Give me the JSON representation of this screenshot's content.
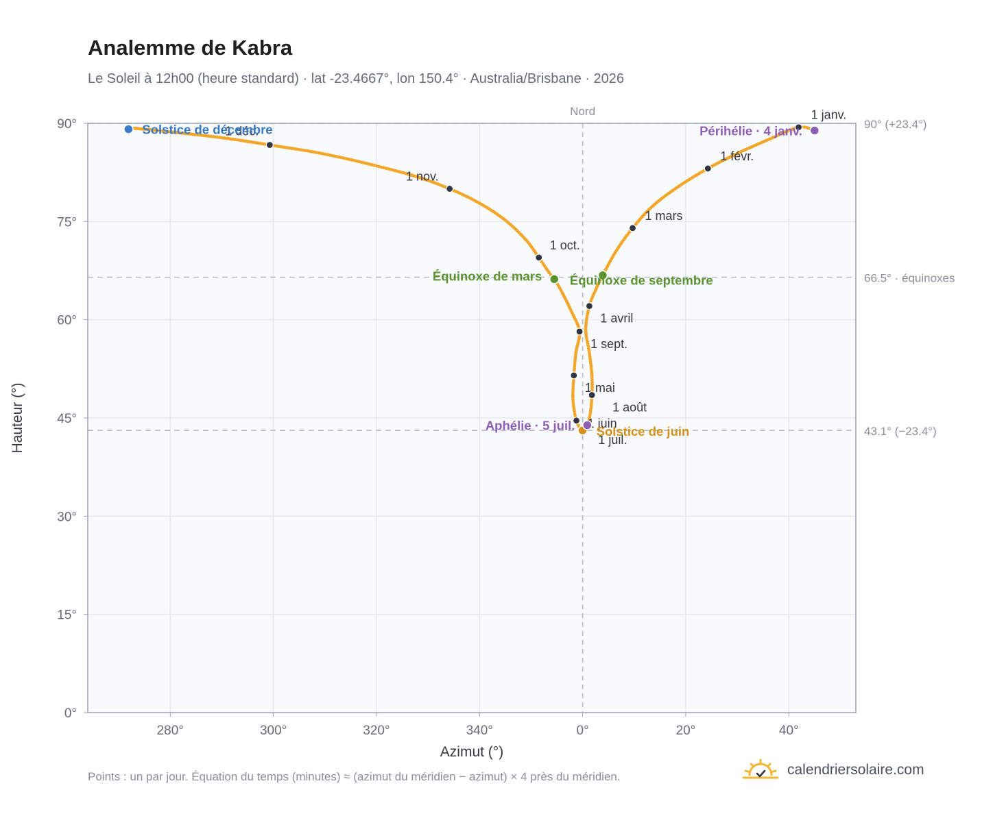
{
  "title": "Analemme de Kabra",
  "subtitle": "Le Soleil à 12h00 (heure standard) · lat -23.4667°, lon 150.4° · Australia/Brisbane · 2026",
  "footnote": "Points : un par jour. Équation du temps (minutes) ≈ (azimut du méridien − azimut) × 4 près du méridien.",
  "brand": {
    "text": "calendriersolaire.com",
    "icon": "sun-check-icon",
    "color": "#f2b632"
  },
  "colors": {
    "analemma": "#f2a62a",
    "month_marker": "#2f3440",
    "december": "#3a7bc8",
    "june": "#d4921a",
    "equinox": "#5b9331",
    "apsides": "#8e5fb5",
    "grid": "#e5e9ef",
    "reference": "#b3bcc8",
    "axis_text": "#666b78"
  },
  "chart_data": {
    "type": "scatter",
    "title": "Analemme de Kabra",
    "xlabel": "Azimut (°)",
    "ylabel": "Hauteur (°)",
    "ylim": [
      0,
      90
    ],
    "xlim": [
      -96,
      53
    ],
    "x_tick_labels": [
      "280°",
      "300°",
      "320°",
      "340°",
      "0°",
      "20°",
      "40°"
    ],
    "x_tick_values": [
      -80,
      -60,
      -40,
      -20,
      0,
      20,
      40
    ],
    "y_tick_labels": [
      "0°",
      "15°",
      "30°",
      "45°",
      "60°",
      "75°",
      "90°"
    ],
    "y_tick_values": [
      0,
      15,
      30,
      45,
      60,
      75,
      90
    ],
    "grid": true,
    "meridian_label": "Nord",
    "reference_lines": [
      {
        "y": 90,
        "label": "90° (+23.4°)"
      },
      {
        "y": 66.5,
        "label": "66.5° · équinoxes"
      },
      {
        "y": 43.1,
        "label": "43.1° (−23.4°)"
      }
    ],
    "month_markers": [
      {
        "label": "1 janv.",
        "x": 41.9,
        "y": 89.4
      },
      {
        "label": "1 févr.",
        "x": 24.3,
        "y": 83.1
      },
      {
        "label": "1 mars",
        "x": 9.7,
        "y": 74.0
      },
      {
        "label": "1 avril",
        "x": 1.3,
        "y": 62.1
      },
      {
        "label": "1 mai",
        "x": -1.7,
        "y": 51.5
      },
      {
        "label": "1 juin",
        "x": -1.2,
        "y": 44.6
      },
      {
        "label": "1 juil.",
        "x": 0.1,
        "y": 43.1
      },
      {
        "label": "1 août",
        "x": 1.8,
        "y": 48.5
      },
      {
        "label": "1 sept.",
        "x": -0.6,
        "y": 58.2
      },
      {
        "label": "1 oct.",
        "x": -8.5,
        "y": 69.5
      },
      {
        "label": "1 nov.",
        "x": -25.8,
        "y": 80.0
      },
      {
        "label": "1 déc.",
        "x": -60.7,
        "y": 86.7
      }
    ],
    "events": [
      {
        "label": "Solstice de décembre",
        "x": -88.1,
        "y": 89.1,
        "kind": "december"
      },
      {
        "label": "Solstice de juin",
        "x": 0.0,
        "y": 43.1,
        "kind": "june"
      },
      {
        "label": "Équinoxe de mars",
        "x": -5.5,
        "y": 66.2,
        "kind": "equinox"
      },
      {
        "label": "Équinoxe de septembre",
        "x": 3.9,
        "y": 66.8,
        "kind": "equinox"
      },
      {
        "label": "Périhélie · 4 janv.",
        "x": 45.0,
        "y": 88.9,
        "kind": "apsides"
      },
      {
        "label": "Aphélie · 5 juil.",
        "x": 0.9,
        "y": 43.9,
        "kind": "apsides"
      }
    ],
    "series": [
      {
        "points": [
          [
            -87.0,
            89.25
          ],
          [
            -80.0,
            88.7
          ],
          [
            -70.0,
            87.8
          ],
          [
            -60.7,
            86.7
          ],
          [
            -50.0,
            85.3
          ],
          [
            -40.0,
            83.5
          ],
          [
            -32.0,
            81.8
          ],
          [
            -25.8,
            80.0
          ],
          [
            -20.0,
            77.8
          ],
          [
            -15.0,
            75.2
          ],
          [
            -11.0,
            72.2
          ],
          [
            -8.5,
            69.5
          ],
          [
            -6.5,
            67.2
          ],
          [
            -5.5,
            66.2
          ],
          [
            -4.0,
            64.2
          ],
          [
            -2.2,
            61.3
          ],
          [
            -0.6,
            58.2
          ],
          [
            -1.3,
            55.0
          ],
          [
            -1.7,
            51.5
          ],
          [
            -1.9,
            48.2
          ],
          [
            -1.6,
            46.0
          ],
          [
            -1.2,
            44.6
          ],
          [
            -0.6,
            43.5
          ],
          [
            0.1,
            43.1
          ],
          [
            0.9,
            43.9
          ],
          [
            1.5,
            45.8
          ],
          [
            1.8,
            48.5
          ],
          [
            1.8,
            51.5
          ],
          [
            1.3,
            55.0
          ],
          [
            0.6,
            58.5
          ],
          [
            1.3,
            62.1
          ],
          [
            2.6,
            64.7
          ],
          [
            3.9,
            66.8
          ],
          [
            6.5,
            70.5
          ],
          [
            9.7,
            74.0
          ],
          [
            13.5,
            77.3
          ],
          [
            18.5,
            80.3
          ],
          [
            24.3,
            83.1
          ],
          [
            30.0,
            85.4
          ],
          [
            36.0,
            87.5
          ],
          [
            41.9,
            89.4
          ],
          [
            45.0,
            88.9
          ]
        ]
      }
    ]
  }
}
